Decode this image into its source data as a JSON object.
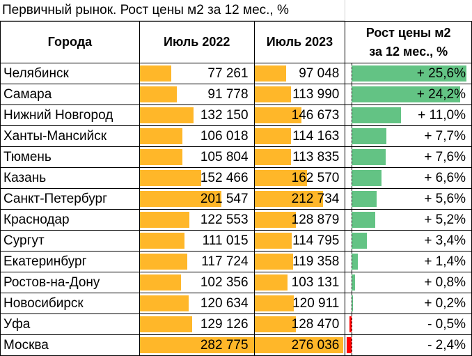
{
  "title": "Первичный рынок. Рост цены м2 за 12 мес., %",
  "columns": {
    "city": "Города",
    "jul2022": "Июль 2022",
    "jul2023": "Июль 2023",
    "growth_line1": "Рост цены м2",
    "growth_line2": "за 12 мес., %"
  },
  "colors": {
    "price_bar": "#ffb729",
    "positive_bar": "#63c384",
    "negative_bar": "#ff0000"
  },
  "chart_data": {
    "type": "table",
    "title": "Первичный рынок. Рост цены м2 за 12 мес., %",
    "columns": [
      "Города",
      "Июль 2022",
      "Июль 2023",
      "Рост цены м2 за 12 мес., %"
    ],
    "rows": [
      {
        "city": "Челябинск",
        "jul2022": 77261,
        "jul2022_label": "77 261",
        "jul2023": 97048,
        "jul2023_label": "97 048",
        "growth": 25.6,
        "growth_label": "+ 25,6%"
      },
      {
        "city": "Самара",
        "jul2022": 91778,
        "jul2022_label": "91 778",
        "jul2023": 113990,
        "jul2023_label": "113 990",
        "growth": 24.2,
        "growth_label": "+ 24,2%"
      },
      {
        "city": "Нижний Новгород",
        "jul2022": 132150,
        "jul2022_label": "132 150",
        "jul2023": 146673,
        "jul2023_label": "146 673",
        "growth": 11.0,
        "growth_label": "+ 11,0%"
      },
      {
        "city": "Ханты-Мансийск",
        "jul2022": 106018,
        "jul2022_label": "106 018",
        "jul2023": 114163,
        "jul2023_label": "114 163",
        "growth": 7.7,
        "growth_label": "+ 7,7%"
      },
      {
        "city": "Тюмень",
        "jul2022": 105804,
        "jul2022_label": "105 804",
        "jul2023": 113835,
        "jul2023_label": "113 835",
        "growth": 7.6,
        "growth_label": "+ 7,6%"
      },
      {
        "city": "Казань",
        "jul2022": 152466,
        "jul2022_label": "152 466",
        "jul2023": 162570,
        "jul2023_label": "162 570",
        "growth": 6.6,
        "growth_label": "+ 6,6%"
      },
      {
        "city": "Санкт-Петербург",
        "jul2022": 201547,
        "jul2022_label": "201 547",
        "jul2023": 212734,
        "jul2023_label": "212 734",
        "growth": 5.6,
        "growth_label": "+ 5,6%"
      },
      {
        "city": "Краснодар",
        "jul2022": 122553,
        "jul2022_label": "122 553",
        "jul2023": 128879,
        "jul2023_label": "128 879",
        "growth": 5.2,
        "growth_label": "+ 5,2%"
      },
      {
        "city": "Сургут",
        "jul2022": 111015,
        "jul2022_label": "111 015",
        "jul2023": 114795,
        "jul2023_label": "114 795",
        "growth": 3.4,
        "growth_label": "+ 3,4%"
      },
      {
        "city": "Екатеринбург",
        "jul2022": 117724,
        "jul2022_label": "117 724",
        "jul2023": 119358,
        "jul2023_label": "119 358",
        "growth": 1.4,
        "growth_label": "+ 1,4%"
      },
      {
        "city": "Ростов-на-Дону",
        "jul2022": 102356,
        "jul2022_label": "102 356",
        "jul2023": 103131,
        "jul2023_label": "103 131",
        "growth": 0.8,
        "growth_label": "+ 0,8%"
      },
      {
        "city": "Новосибирск",
        "jul2022": 120634,
        "jul2022_label": "120 634",
        "jul2023": 120911,
        "jul2023_label": "120 911",
        "growth": 0.2,
        "growth_label": "+ 0,2%"
      },
      {
        "city": "Уфа",
        "jul2022": 129126,
        "jul2022_label": "129 126",
        "jul2023": 128470,
        "jul2023_label": "128 470",
        "growth": -0.5,
        "growth_label": "- 0,5%"
      },
      {
        "city": "Москва",
        "jul2022": 282775,
        "jul2022_label": "282 775",
        "jul2023": 276036,
        "jul2023_label": "276 036",
        "growth": -2.4,
        "growth_label": "- 2,4%"
      }
    ]
  }
}
